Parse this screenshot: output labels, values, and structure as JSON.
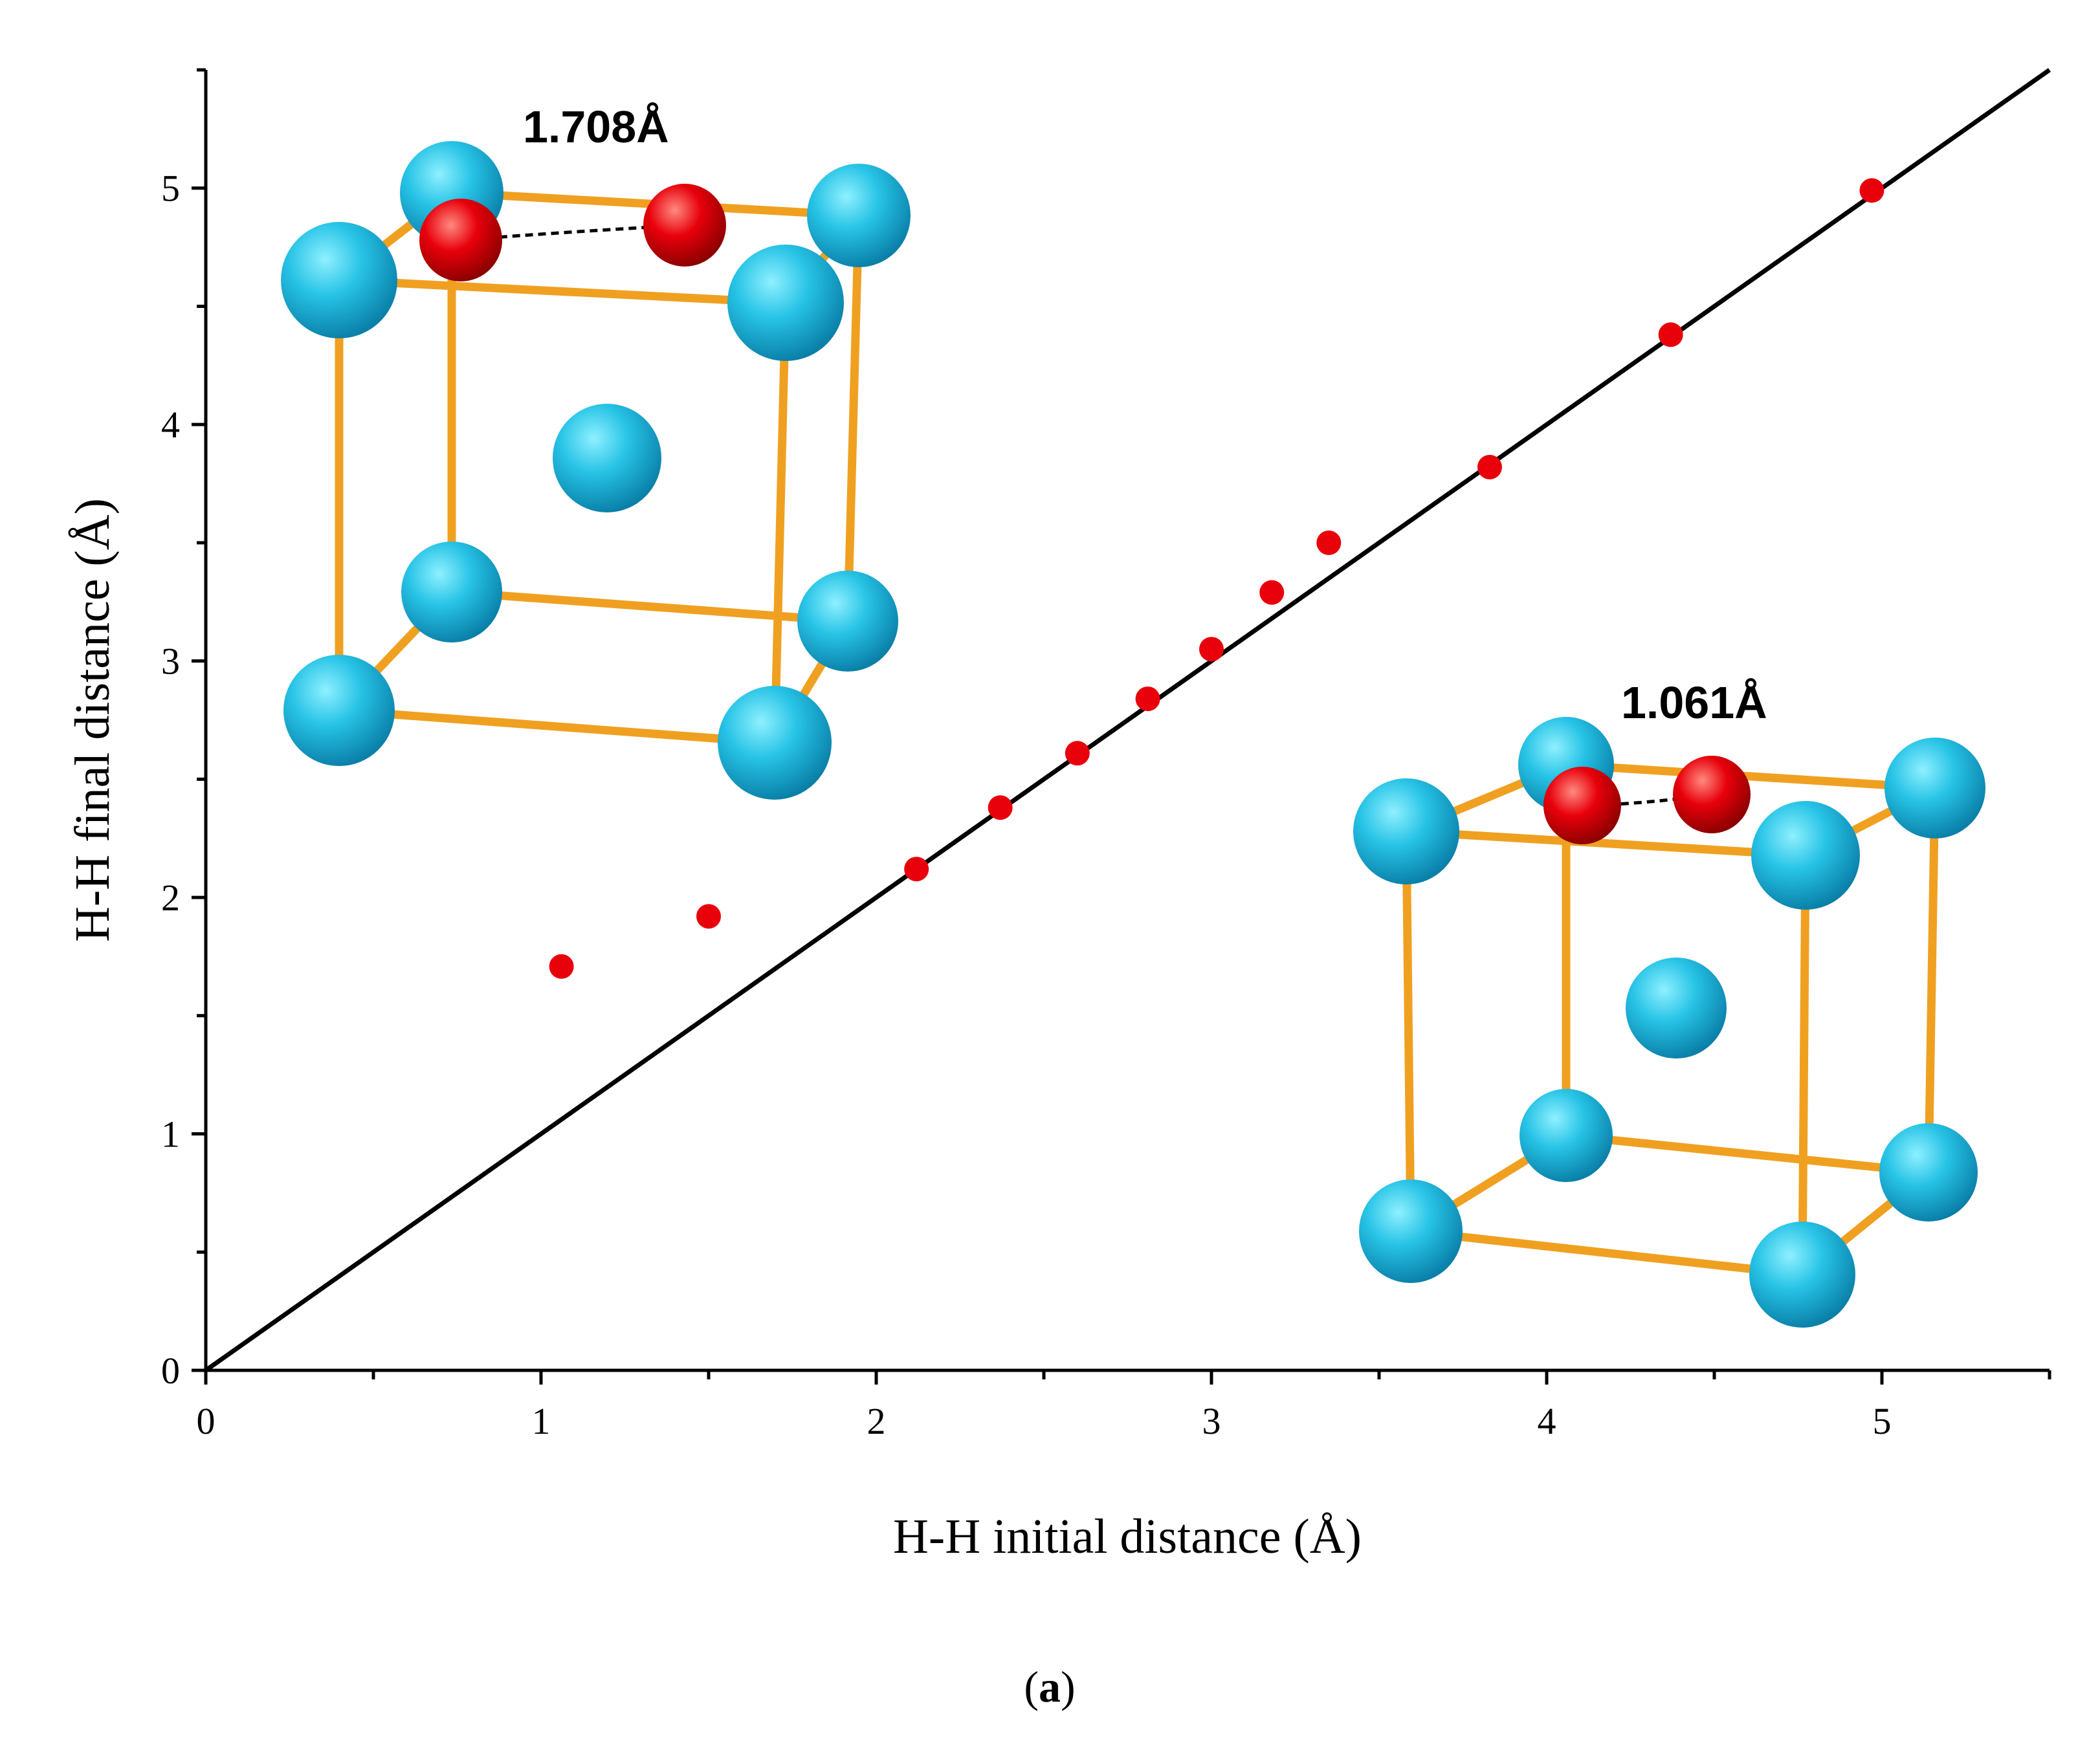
{
  "chart_data": {
    "type": "scatter",
    "title": "",
    "xlabel": "H-H initial distance (Å)",
    "ylabel": "H-H final distance (Å)",
    "xlim": [
      0,
      5.5
    ],
    "ylim": [
      0,
      5.5
    ],
    "x_ticks": [
      "0",
      "1",
      "2",
      "3",
      "4",
      "5"
    ],
    "y_ticks": [
      "0",
      "1",
      "2",
      "3",
      "4",
      "5"
    ],
    "grid": false,
    "legend": "none",
    "points_color": "#e8000b",
    "reference_line": {
      "type": "y=x",
      "color": "#000000"
    },
    "series": [
      {
        "x": [
          1.061,
          1.5,
          2.12,
          2.37,
          2.6,
          2.81,
          3.0,
          3.18,
          3.35,
          3.83,
          4.37,
          4.97
        ],
        "y": [
          1.708,
          1.92,
          2.12,
          2.38,
          2.61,
          2.84,
          3.05,
          3.29,
          3.5,
          3.82,
          4.38,
          4.99
        ]
      }
    ],
    "annotations": [
      "1.708Å",
      "1.061Å"
    ]
  },
  "insets": {
    "atom_color": "#27c3e6",
    "hydrogen_color": "#e8000b",
    "bond_color": "#f0a020"
  },
  "caption": {
    "open": "(",
    "label": "a",
    "close": ")"
  }
}
